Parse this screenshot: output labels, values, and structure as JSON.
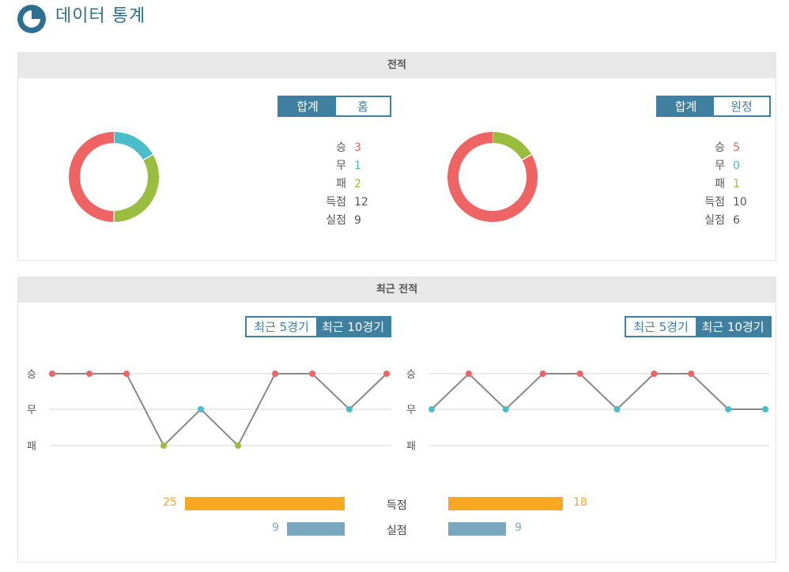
{
  "header": {
    "title": "데이터 통계",
    "logo_icon": "pie-chart-icon"
  },
  "colors": {
    "win": "#ee6464",
    "draw": "#4bbcca",
    "loss": "#98bd3f",
    "accent": "#3f7f9f",
    "goals_for_bar": "#f9a825",
    "goals_against_bar": "#7aa7c0"
  },
  "record": {
    "section_title": "전적",
    "left": {
      "tabs": [
        "합계",
        "홈"
      ],
      "active_tab": 0,
      "stats": [
        {
          "label": "승",
          "value": "3"
        },
        {
          "label": "무",
          "value": "1"
        },
        {
          "label": "패",
          "value": "2"
        },
        {
          "label": "득점",
          "value": "12"
        },
        {
          "label": "실점",
          "value": "9"
        }
      ]
    },
    "right": {
      "tabs": [
        "합계",
        "원정"
      ],
      "active_tab": 0,
      "stats": [
        {
          "label": "승",
          "value": "5"
        },
        {
          "label": "무",
          "value": "0"
        },
        {
          "label": "패",
          "value": "1"
        },
        {
          "label": "득점",
          "value": "10"
        },
        {
          "label": "실점",
          "value": "6"
        }
      ]
    }
  },
  "recent": {
    "section_title": "최근 전적",
    "left": {
      "tabs": [
        "최근 5경기",
        "최근 10경기"
      ],
      "active_tab": 1
    },
    "right": {
      "tabs": [
        "최근 5경기",
        "최근 10경기"
      ],
      "active_tab": 1
    },
    "goals_label": "득점",
    "conceded_label": "실점",
    "left_goals": "25",
    "left_conceded": "9",
    "right_goals": "18",
    "right_conceded": "9"
  },
  "chart_data": [
    {
      "type": "pie",
      "categories": [
        "승",
        "무",
        "패"
      ],
      "values": [
        3,
        1,
        2
      ]
    },
    {
      "type": "pie",
      "categories": [
        "승",
        "무",
        "패"
      ],
      "values": [
        5,
        0,
        1
      ]
    },
    {
      "type": "line",
      "y_categories": [
        "승",
        "무",
        "패"
      ],
      "values": [
        "승",
        "승",
        "승",
        "패",
        "무",
        "패",
        "승",
        "승",
        "무",
        "승"
      ]
    },
    {
      "type": "line",
      "y_categories": [
        "승",
        "무",
        "패"
      ],
      "values": [
        "무",
        "승",
        "무",
        "승",
        "승",
        "무",
        "승",
        "승",
        "무",
        "무"
      ]
    },
    {
      "type": "bar",
      "categories": [
        "득점",
        "실점"
      ],
      "series": [
        {
          "values": [
            25,
            9
          ]
        },
        {
          "values": [
            18,
            9
          ]
        }
      ]
    }
  ]
}
